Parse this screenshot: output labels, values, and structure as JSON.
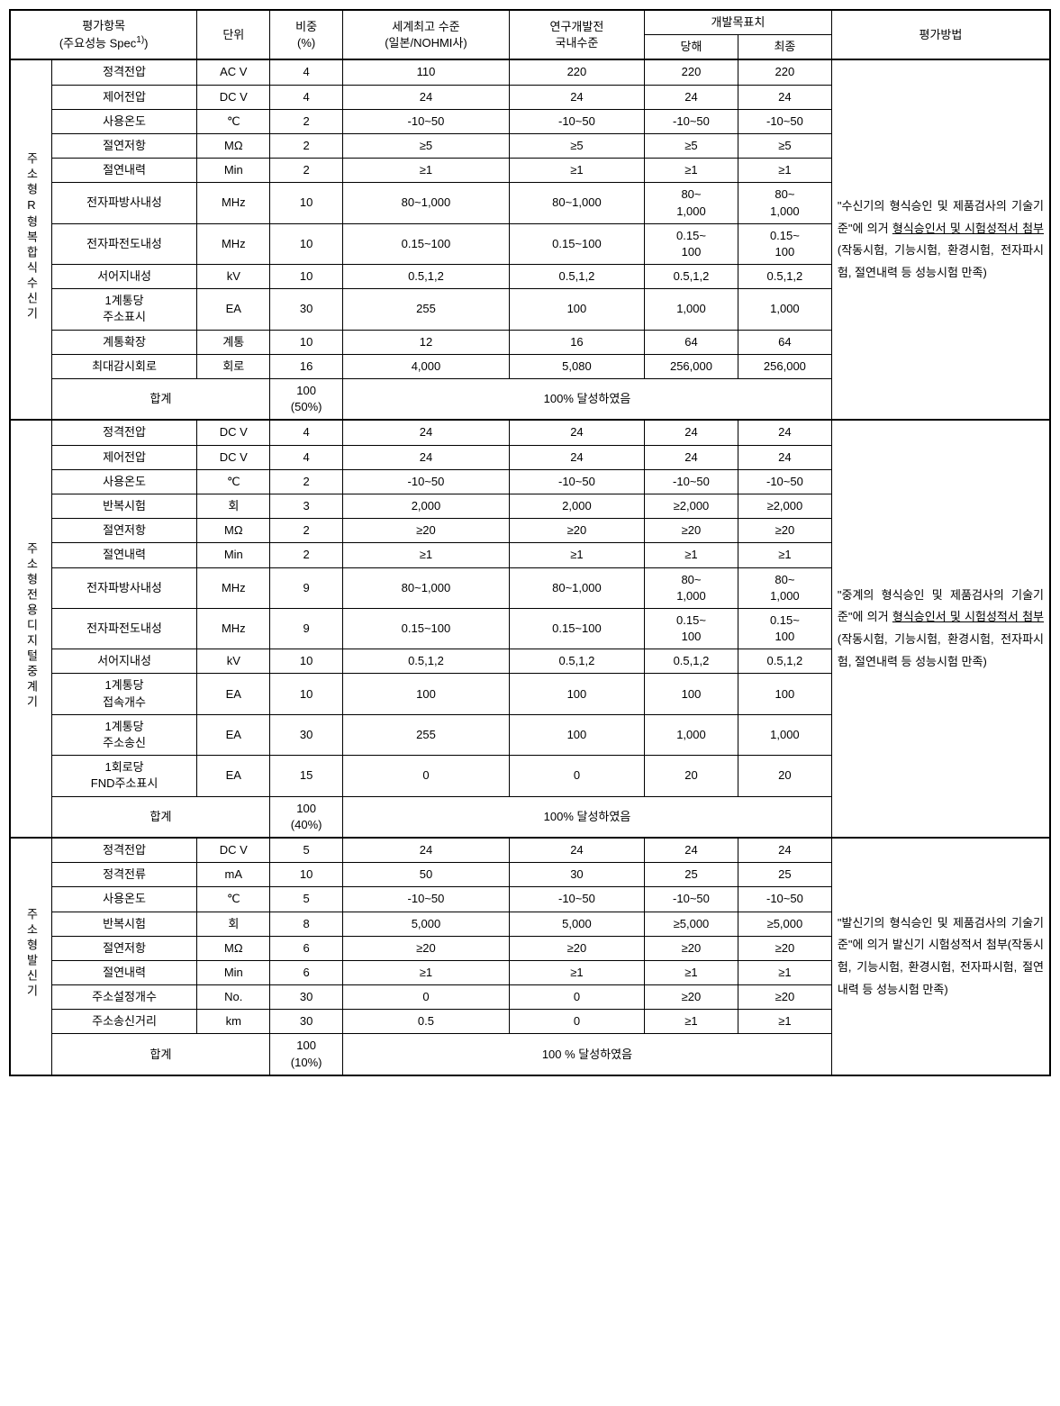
{
  "header": {
    "c1a": "평가항목",
    "c1b": "(주요성능 Spec",
    "c1sup": "1)",
    "c1c": ")",
    "c2": "단위",
    "c3a": "비중",
    "c3b": "(%)",
    "c4a": "세계최고 수준",
    "c4b": "(일본/NOHMI사)",
    "c5a": "연구개발전",
    "c5b": "국내수준",
    "c6": "개발목표치",
    "c6a": "당해",
    "c6b": "최종",
    "c7": "평가방법"
  },
  "sec1": {
    "title": "주소형R형복합식수신기",
    "rows": [
      {
        "n": "정격전압",
        "u": "AC V",
        "w": "4",
        "a": "110",
        "b": "220",
        "c": "220",
        "d": "220"
      },
      {
        "n": "제어전압",
        "u": "DC V",
        "w": "4",
        "a": "24",
        "b": "24",
        "c": "24",
        "d": "24"
      },
      {
        "n": "사용온도",
        "u": "℃",
        "w": "2",
        "a": "-10~50",
        "b": "-10~50",
        "c": "-10~50",
        "d": "-10~50"
      },
      {
        "n": "절연저항",
        "u": "MΩ",
        "w": "2",
        "a": "≥5",
        "b": "≥5",
        "c": "≥5",
        "d": "≥5"
      },
      {
        "n": "절연내력",
        "u": "Min",
        "w": "2",
        "a": "≥1",
        "b": "≥1",
        "c": "≥1",
        "d": "≥1"
      },
      {
        "n": "전자파방사내성",
        "u": "MHz",
        "w": "10",
        "a": "80~1,000",
        "b": "80~1,000",
        "c": "80~\n1,000",
        "d": "80~\n1,000",
        "tall": true
      },
      {
        "n": "전자파전도내성",
        "u": "MHz",
        "w": "10",
        "a": "0.15~100",
        "b": "0.15~100",
        "c": "0.15~\n100",
        "d": "0.15~\n100",
        "tall": true
      },
      {
        "n": "서어지내성",
        "u": "kV",
        "w": "10",
        "a": "0.5,1,2",
        "b": "0.5,1,2",
        "c": "0.5,1,2",
        "d": "0.5,1,2"
      },
      {
        "n": "1계통당\n주소표시",
        "u": "EA",
        "w": "30",
        "a": "255",
        "b": "100",
        "c": "1,000",
        "d": "1,000",
        "tall": true
      },
      {
        "n": "계통확장",
        "u": "계통",
        "w": "10",
        "a": "12",
        "b": "16",
        "c": "64",
        "d": "64"
      },
      {
        "n": "최대감시회로",
        "u": "회로",
        "w": "16",
        "a": "4,000",
        "b": "5,080",
        "c": "256,000",
        "d": "256,000"
      }
    ],
    "sum_label": "합계",
    "sum_w": "100\n(50%)",
    "sum_text": "100% 달성하였음",
    "method_parts": [
      "\"수신기의 형식승인 및 제품검사의 기술기준\"에 의거 ",
      "형식승인서 및 시험성적서 첨부",
      "(작동시험, 기능시험, 환경시험, 전자파시험, 절연내력 등 성능시험 만족)"
    ]
  },
  "sec2": {
    "title": "주소형전용디지털중계기",
    "rows": [
      {
        "n": "정격전압",
        "u": "DC V",
        "w": "4",
        "a": "24",
        "b": "24",
        "c": "24",
        "d": "24"
      },
      {
        "n": "제어전압",
        "u": "DC V",
        "w": "4",
        "a": "24",
        "b": "24",
        "c": "24",
        "d": "24"
      },
      {
        "n": "사용온도",
        "u": "℃",
        "w": "2",
        "a": "-10~50",
        "b": "-10~50",
        "c": "-10~50",
        "d": "-10~50"
      },
      {
        "n": "반복시험",
        "u": "회",
        "w": "3",
        "a": "2,000",
        "b": "2,000",
        "c": "≥2,000",
        "d": "≥2,000"
      },
      {
        "n": "절연저항",
        "u": "MΩ",
        "w": "2",
        "a": "≥20",
        "b": "≥20",
        "c": "≥20",
        "d": "≥20"
      },
      {
        "n": "절연내력",
        "u": "Min",
        "w": "2",
        "a": "≥1",
        "b": "≥1",
        "c": "≥1",
        "d": "≥1"
      },
      {
        "n": "전자파방사내성",
        "u": "MHz",
        "w": "9",
        "a": "80~1,000",
        "b": "80~1,000",
        "c": "80~\n1,000",
        "d": "80~\n1,000",
        "tall": true
      },
      {
        "n": "전자파전도내성",
        "u": "MHz",
        "w": "9",
        "a": "0.15~100",
        "b": "0.15~100",
        "c": "0.15~\n100",
        "d": "0.15~\n100",
        "tall": true
      },
      {
        "n": "서어지내성",
        "u": "kV",
        "w": "10",
        "a": "0.5,1,2",
        "b": "0.5,1,2",
        "c": "0.5,1,2",
        "d": "0.5,1,2"
      },
      {
        "n": "1계통당\n접속개수",
        "u": "EA",
        "w": "10",
        "a": "100",
        "b": "100",
        "c": "100",
        "d": "100",
        "tall": true
      },
      {
        "n": "1계통당\n주소송신",
        "u": "EA",
        "w": "30",
        "a": "255",
        "b": "100",
        "c": "1,000",
        "d": "1,000",
        "tall": true
      },
      {
        "n": "1회로당\nFND주소표시",
        "u": "EA",
        "w": "15",
        "a": "0",
        "b": "0",
        "c": "20",
        "d": "20",
        "tall": true
      }
    ],
    "sum_label": "합계",
    "sum_w": "100\n(40%)",
    "sum_text": "100% 달성하였음",
    "method_parts": [
      "\"중계의 형식승인 및 제품검사의 기술기준\"에 의거 ",
      "형식승인서 및 시험성적서 첨부",
      "(작동시험, 기능시험, 환경시험, 전자파시험, 절연내력 등 성능시험 만족)"
    ]
  },
  "sec3": {
    "title": "주소형발신기",
    "rows": [
      {
        "n": "정격전압",
        "u": "DC V",
        "w": "5",
        "a": "24",
        "b": "24",
        "c": "24",
        "d": "24"
      },
      {
        "n": "정격전류",
        "u": "mA",
        "w": "10",
        "a": "50",
        "b": "30",
        "c": "25",
        "d": "25"
      },
      {
        "n": "사용온도",
        "u": "℃",
        "w": "5",
        "a": "-10~50",
        "b": "-10~50",
        "c": "-10~50",
        "d": "-10~50"
      },
      {
        "n": "반복시험",
        "u": "회",
        "w": "8",
        "a": "5,000",
        "b": "5,000",
        "c": "≥5,000",
        "d": "≥5,000"
      },
      {
        "n": "절연저항",
        "u": "MΩ",
        "w": "6",
        "a": "≥20",
        "b": "≥20",
        "c": "≥20",
        "d": "≥20"
      },
      {
        "n": "절연내력",
        "u": "Min",
        "w": "6",
        "a": "≥1",
        "b": "≥1",
        "c": "≥1",
        "d": "≥1"
      },
      {
        "n": "주소설정개수",
        "u": "No.",
        "w": "30",
        "a": "0",
        "b": "0",
        "c": "≥20",
        "d": "≥20"
      },
      {
        "n": "주소송신거리",
        "u": "km",
        "w": "30",
        "a": "0.5",
        "b": "0",
        "c": "≥1",
        "d": "≥1"
      }
    ],
    "sum_label": "합계",
    "sum_w": "100\n(10%)",
    "sum_text": "100 % 달성하였음",
    "method_parts": [
      "\"발신기의 형식승인 및 제품검사의 기술기준\"에 의거 발신기 시험성적서 첨부(작동시험, 기능시험, 환경시험, 전자파시험, 절연내력 등 성능시험 만족)"
    ]
  },
  "colwidths": [
    "4%",
    "14%",
    "7%",
    "7%",
    "16%",
    "13%",
    "9%",
    "9%",
    "21%"
  ]
}
